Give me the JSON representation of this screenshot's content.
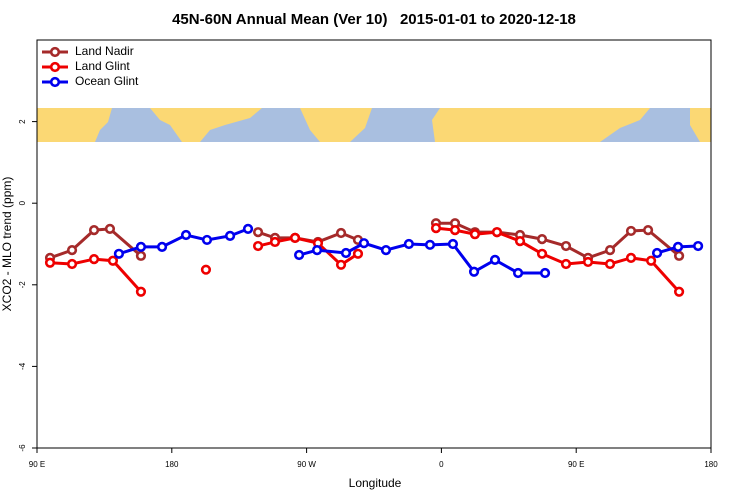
{
  "chart_data": {
    "type": "line",
    "title": "45N-60N Annual Mean (Ver 10)   2015-01-01 to 2020-12-18",
    "x_label": "Longitude",
    "y_label": "XCO2 - MLO trend (ppm)",
    "xlim": [
      90,
      540
    ],
    "xticks": [
      {
        "value": 90,
        "label": "90 E"
      },
      180,
      {
        "value": 270,
        "label": "90 W"
      },
      {
        "value": 360,
        "label": "0"
      },
      {
        "value": 450,
        "label": "90 E"
      },
      {
        "value": 540,
        "label": "180"
      }
    ],
    "ylim": [
      -6,
      4
    ],
    "yticks": [
      -6,
      -4,
      -2,
      0,
      2
    ],
    "legend": "top-left",
    "series": [
      {
        "name": "Land Nadir",
        "color": "#a52a2a",
        "x": [
          98.7,
          113.4,
          128.1,
          138.7,
          159.4,
          null,
          237.6,
          248.9,
          262.3,
          277.6,
          293.0,
          304.3,
          null,
          356.4,
          369.1,
          382.4,
          397.1,
          412.5,
          427.2,
          443.2,
          457.9,
          472.6,
          486.6,
          498.0,
          518.7
        ],
        "values": [
          -1.34,
          -1.15,
          -0.66,
          -0.63,
          -1.29,
          null,
          -0.71,
          -0.85,
          -0.85,
          -0.95,
          -0.73,
          -0.9,
          null,
          -0.49,
          -0.49,
          -0.71,
          -0.71,
          -0.78,
          -0.88,
          -1.05,
          -1.34,
          -1.15,
          -0.68,
          -0.66,
          -1.29
        ]
      },
      {
        "name": "Land Glint",
        "color": "#ee0000",
        "x": [
          98.7,
          113.4,
          128.1,
          140.7,
          159.4,
          null,
          202.8,
          null,
          237.6,
          248.9,
          262.3,
          277.6,
          293.0,
          304.3,
          null,
          356.4,
          369.1,
          382.4,
          397.1,
          412.5,
          427.2,
          443.2,
          457.9,
          472.6,
          486.6,
          500.0,
          518.7
        ],
        "values": [
          -1.46,
          -1.49,
          -1.37,
          -1.41,
          -2.17,
          null,
          -1.63,
          null,
          -1.05,
          -0.95,
          -0.85,
          -0.98,
          -1.51,
          -1.24,
          null,
          -0.61,
          -0.66,
          -0.76,
          -0.71,
          -0.93,
          -1.24,
          -1.49,
          -1.44,
          -1.49,
          -1.34,
          -1.41,
          -2.17
        ]
      },
      {
        "name": "Ocean Glint",
        "color": "#0000ee",
        "x": [
          144.7,
          159.4,
          173.5,
          189.5,
          203.5,
          218.9,
          230.9,
          null,
          265.0,
          277.0,
          296.3,
          308.3,
          323.0,
          338.3,
          352.4,
          367.7,
          381.8,
          395.8,
          411.2,
          429.2,
          null,
          504.0,
          518.0,
          531.4
        ],
        "values": [
          -1.24,
          -1.07,
          -1.07,
          -0.78,
          -0.9,
          -0.8,
          -0.63,
          null,
          -1.27,
          -1.15,
          -1.22,
          -0.98,
          -1.15,
          -1.0,
          -1.02,
          -1.0,
          -1.68,
          -1.39,
          -1.71,
          -1.71,
          null,
          -1.22,
          -1.07,
          -1.05
        ]
      }
    ]
  }
}
